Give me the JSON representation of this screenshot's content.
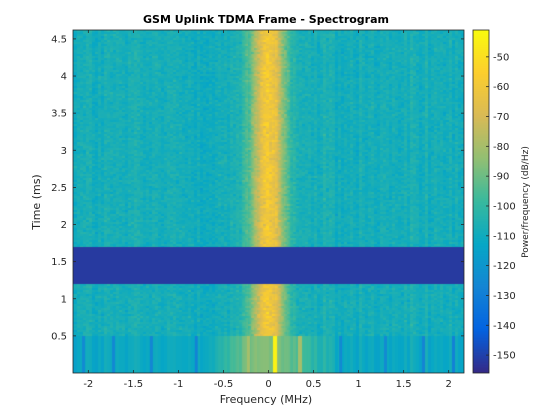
{
  "chart_data": {
    "type": "heatmap",
    "title": "GSM Uplink TDMA Frame - Spectrogram",
    "xlabel": "Frequency (MHz)",
    "ylabel": "Time (ms)",
    "colorbar_label": "Power/frequency (dB/Hz)",
    "xlim": [
      -2.17,
      2.17
    ],
    "ylim": [
      0,
      4.62
    ],
    "clim": [
      -156,
      -41
    ],
    "x_ticks": [
      -2,
      -1.5,
      -1,
      -0.5,
      0,
      0.5,
      1,
      1.5,
      2
    ],
    "x_tick_labels": [
      "-2",
      "-1.5",
      "-1",
      "-0.5",
      "0",
      "0.5",
      "1",
      "1.5",
      "2"
    ],
    "y_ticks": [
      0.5,
      1,
      1.5,
      2,
      2.5,
      3,
      3.5,
      4,
      4.5
    ],
    "y_tick_labels": [
      "0.5",
      "1",
      "1.5",
      "2",
      "2.5",
      "3",
      "3.5",
      "4",
      "4.5"
    ],
    "colorbar_ticks": [
      -50,
      -60,
      -70,
      -80,
      -90,
      -100,
      -110,
      -120,
      -130,
      -140,
      -150
    ],
    "colorbar_tick_labels": [
      "-50",
      "-60",
      "-70",
      "-80",
      "-90",
      "-100",
      "-110",
      "-120",
      "-130",
      "-140",
      "-150"
    ],
    "colormap": "parula",
    "colormap_stops": [
      "#352a87",
      "#0363e1",
      "#1485d4",
      "#06a7c6",
      "#38b99e",
      "#92bf73",
      "#d9ba56",
      "#fcce2e",
      "#f9fb0e"
    ],
    "regions": [
      {
        "name": "active burst",
        "t_start": 1.7,
        "t_end": 4.62,
        "floor_db": -108,
        "peak_db": -58,
        "center_mhz": 0.0,
        "bandwidth_mhz": 0.27
      },
      {
        "name": "silent gap",
        "t_start": 1.2,
        "t_end": 1.7,
        "level_db": -152
      },
      {
        "name": "active burst",
        "t_start": 0.5,
        "t_end": 1.2,
        "floor_db": -108,
        "peak_db": -58,
        "center_mhz": 0.0,
        "bandwidth_mhz": 0.27
      },
      {
        "name": "ramp-up",
        "t_start": 0.0,
        "t_end": 0.5,
        "floor_db": -112,
        "peak_db": -85,
        "tones_mhz": [
          -0.22,
          0.07,
          0.35
        ]
      }
    ]
  }
}
